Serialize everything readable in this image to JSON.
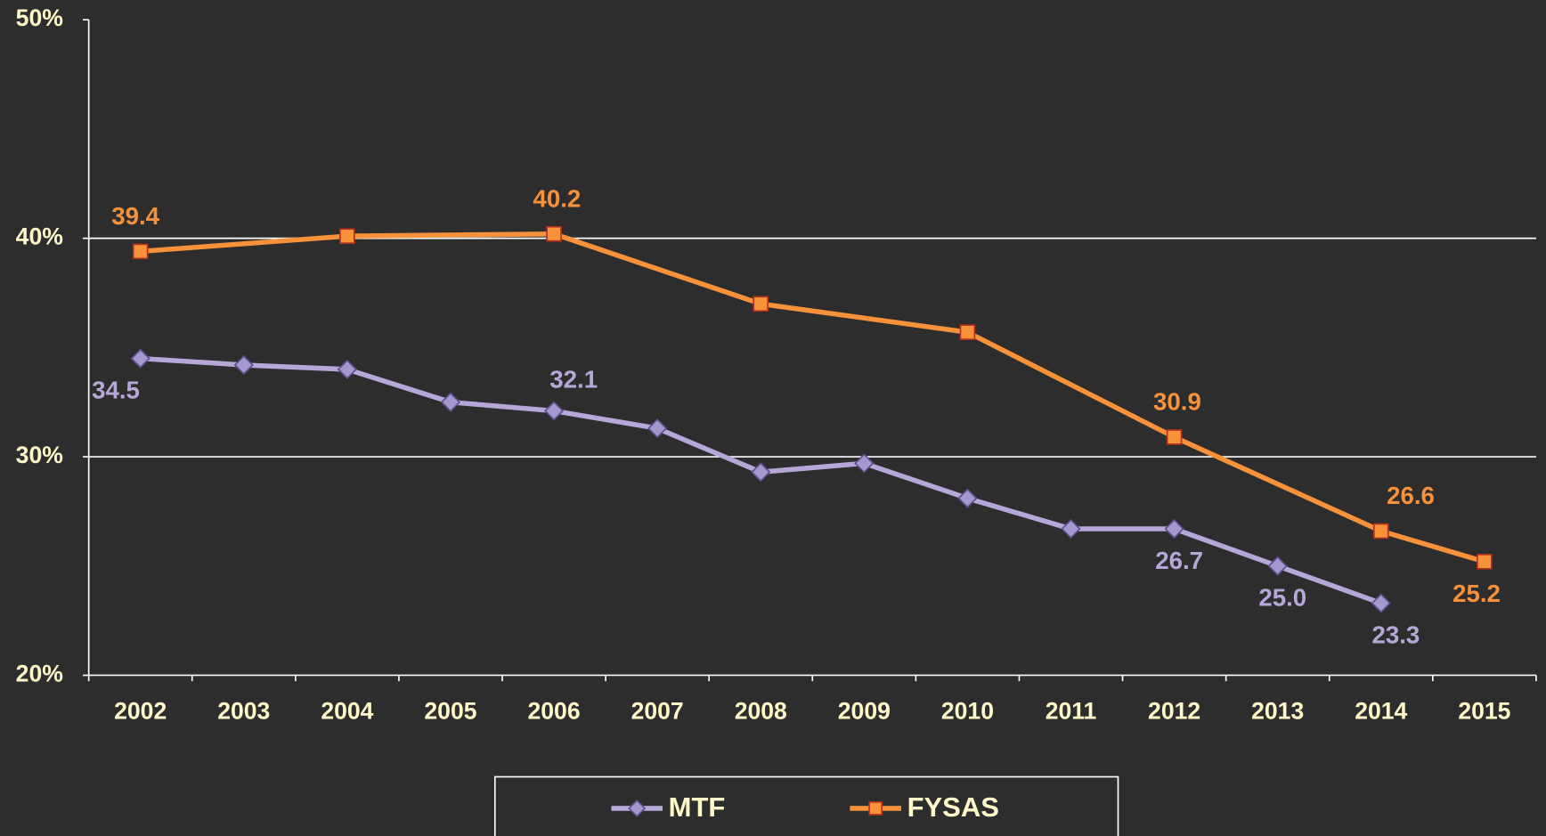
{
  "chart_data": {
    "type": "line",
    "xlim": [
      2001.5,
      2015.5
    ],
    "xticks": [
      2002,
      2003,
      2004,
      2005,
      2006,
      2007,
      2008,
      2009,
      2010,
      2011,
      2012,
      2013,
      2014,
      2015
    ],
    "ylim": [
      20,
      50
    ],
    "yticks": [
      {
        "value": 20,
        "label": "20%"
      },
      {
        "value": 30,
        "label": "30%"
      },
      {
        "value": 40,
        "label": "40%"
      },
      {
        "value": 50,
        "label": "50%"
      }
    ],
    "grid": true,
    "series": [
      {
        "name": "MTF",
        "color": "#b5a8d8",
        "marker": "diamond",
        "x": [
          2002,
          2003,
          2004,
          2005,
          2006,
          2007,
          2008,
          2009,
          2010,
          2011,
          2012,
          2013,
          2014
        ],
        "values": [
          34.5,
          34.2,
          34.0,
          32.5,
          32.1,
          31.3,
          29.3,
          29.7,
          28.1,
          26.7,
          26.7,
          25.0,
          23.3
        ],
        "value_labels": [
          "34.5",
          null,
          null,
          null,
          "32.1",
          null,
          null,
          null,
          null,
          null,
          "26.7",
          "25.0",
          "23.3"
        ]
      },
      {
        "name": "FYSAS",
        "color": "#f7923a",
        "marker": "square",
        "x": [
          2002,
          2004,
          2006,
          2008,
          2010,
          2012,
          2014,
          2015
        ],
        "values": [
          39.4,
          40.1,
          40.2,
          37.0,
          35.7,
          30.9,
          26.6,
          25.2
        ],
        "value_labels": [
          "39.4",
          null,
          "40.2",
          null,
          null,
          "30.9",
          "26.6",
          "25.2"
        ]
      }
    ]
  }
}
